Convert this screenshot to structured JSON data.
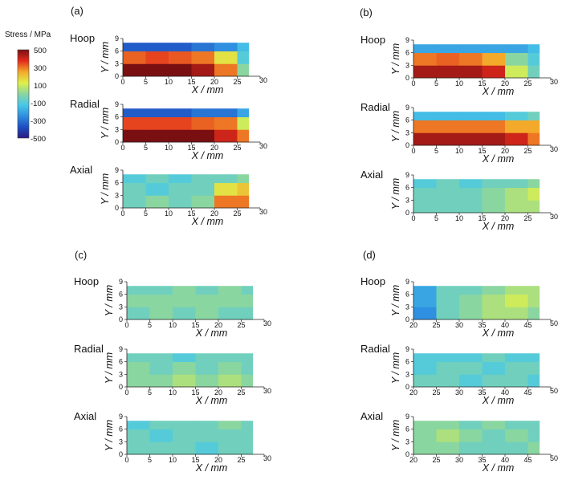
{
  "colorbar": {
    "title": "Stress / MPa",
    "tick_labels": [
      "500",
      "300",
      "100",
      "-100",
      "-300",
      "-500"
    ],
    "range": [
      -500,
      500
    ],
    "colormap": "jet"
  },
  "chart_data": [
    {
      "type": "heatmap",
      "panel": "(a)",
      "row": "Hoop",
      "xlabel": "X / mm",
      "ylabel": "Y / mm",
      "xlim": [
        0,
        30
      ],
      "ylim": [
        0,
        9
      ],
      "xticks": [
        "0",
        "5",
        "10",
        "15",
        "20",
        "25",
        "30"
      ],
      "yticks": [
        "0",
        "3",
        "6",
        "9"
      ],
      "x": [
        0,
        5,
        10,
        15,
        20,
        25
      ],
      "y": [
        0,
        3,
        6
      ],
      "z": [
        [
          500,
          500,
          500,
          450,
          300,
          0
        ],
        [
          320,
          350,
          330,
          300,
          150,
          -100
        ],
        [
          -350,
          -350,
          -350,
          -300,
          -250,
          -150
        ]
      ]
    },
    {
      "type": "heatmap",
      "panel": "(a)",
      "row": "Radial",
      "xlabel": "X / mm",
      "ylabel": "Y / mm",
      "xlim": [
        0,
        30
      ],
      "ylim": [
        0,
        9
      ],
      "xticks": [
        "0",
        "5",
        "10",
        "15",
        "20",
        "25",
        "30"
      ],
      "yticks": [
        "0",
        "3",
        "6",
        "9"
      ],
      "x": [
        0,
        5,
        10,
        15,
        20,
        25
      ],
      "y": [
        0,
        3,
        6
      ],
      "z": [
        [
          500,
          500,
          500,
          500,
          400,
          300
        ],
        [
          350,
          350,
          350,
          320,
          300,
          100
        ],
        [
          -350,
          -350,
          -350,
          -300,
          -300,
          -200
        ]
      ]
    },
    {
      "type": "heatmap",
      "panel": "(a)",
      "row": "Axial",
      "xlabel": "X / mm",
      "ylabel": "Y / mm",
      "xlim": [
        0,
        30
      ],
      "ylim": [
        0,
        9
      ],
      "xticks": [
        "0",
        "5",
        "10",
        "15",
        "20",
        "25",
        "30"
      ],
      "yticks": [
        "0",
        "3",
        "6",
        "9"
      ],
      "x": [
        0,
        5,
        10,
        15,
        20,
        25
      ],
      "y": [
        0,
        3,
        6
      ],
      "z": [
        [
          -50,
          0,
          -50,
          0,
          300,
          300
        ],
        [
          -50,
          -100,
          -50,
          -50,
          150,
          200
        ],
        [
          -100,
          -50,
          -100,
          -50,
          -50,
          0
        ]
      ]
    },
    {
      "type": "heatmap",
      "panel": "(b)",
      "row": "Hoop",
      "xlabel": "X / mm",
      "ylabel": "Y / mm",
      "xlim": [
        0,
        30
      ],
      "ylim": [
        0,
        9
      ],
      "xticks": [
        "0",
        "5",
        "10",
        "15",
        "20",
        "25",
        "30"
      ],
      "yticks": [
        "0",
        "3",
        "6",
        "9"
      ],
      "x": [
        0,
        5,
        10,
        15,
        20,
        25
      ],
      "y": [
        0,
        3,
        6
      ],
      "z": [
        [
          450,
          450,
          450,
          400,
          100,
          -50
        ],
        [
          300,
          320,
          300,
          250,
          0,
          -100
        ],
        [
          -200,
          -200,
          -200,
          -200,
          -200,
          -150
        ]
      ]
    },
    {
      "type": "heatmap",
      "panel": "(b)",
      "row": "Radial",
      "xlabel": "X / mm",
      "ylabel": "Y / mm",
      "xlim": [
        0,
        30
      ],
      "ylim": [
        0,
        9
      ],
      "xticks": [
        "0",
        "5",
        "10",
        "15",
        "20",
        "25",
        "30"
      ],
      "yticks": [
        "0",
        "3",
        "6",
        "9"
      ],
      "x": [
        0,
        5,
        10,
        15,
        20,
        25
      ],
      "y": [
        0,
        3,
        6
      ],
      "z": [
        [
          450,
          450,
          450,
          450,
          400,
          300
        ],
        [
          300,
          300,
          300,
          300,
          250,
          250
        ],
        [
          -150,
          -150,
          -150,
          -150,
          -100,
          -50
        ]
      ]
    },
    {
      "type": "heatmap",
      "panel": "(b)",
      "row": "Axial",
      "xlabel": "X / mm",
      "ylabel": "Y / mm",
      "xlim": [
        0,
        30
      ],
      "ylim": [
        0,
        9
      ],
      "xticks": [
        "0",
        "5",
        "10",
        "15",
        "20",
        "25",
        "30"
      ],
      "yticks": [
        "0",
        "3",
        "6",
        "9"
      ],
      "x": [
        0,
        5,
        10,
        15,
        20,
        25
      ],
      "y": [
        0,
        3,
        6
      ],
      "z": [
        [
          -50,
          -50,
          -50,
          0,
          50,
          50
        ],
        [
          -50,
          -50,
          -50,
          0,
          50,
          100
        ],
        [
          -100,
          -50,
          -100,
          -50,
          -50,
          0
        ]
      ]
    },
    {
      "type": "heatmap",
      "panel": "(c)",
      "row": "Hoop",
      "xlabel": "X / mm",
      "ylabel": "Y / mm",
      "xlim": [
        0,
        30
      ],
      "ylim": [
        0,
        9
      ],
      "xticks": [
        "0",
        "5",
        "10",
        "15",
        "20",
        "25",
        "30"
      ],
      "yticks": [
        "0",
        "3",
        "6",
        "9"
      ],
      "x": [
        0,
        5,
        10,
        15,
        20,
        25
      ],
      "y": [
        0,
        3,
        6
      ],
      "z": [
        [
          -50,
          0,
          -50,
          0,
          -50,
          -50
        ],
        [
          0,
          0,
          0,
          0,
          0,
          0
        ],
        [
          -50,
          -50,
          0,
          -50,
          0,
          -50
        ]
      ]
    },
    {
      "type": "heatmap",
      "panel": "(c)",
      "row": "Radial",
      "xlabel": "X / mm",
      "ylabel": "Y / mm",
      "xlim": [
        0,
        30
      ],
      "ylim": [
        0,
        9
      ],
      "xticks": [
        "0",
        "5",
        "10",
        "15",
        "20",
        "25",
        "30"
      ],
      "yticks": [
        "0",
        "3",
        "6",
        "9"
      ],
      "x": [
        0,
        5,
        10,
        15,
        20,
        25
      ],
      "y": [
        0,
        3,
        6
      ],
      "z": [
        [
          0,
          0,
          50,
          0,
          50,
          0
        ],
        [
          0,
          -50,
          0,
          -50,
          0,
          -50
        ],
        [
          -50,
          -50,
          -100,
          -50,
          -50,
          -50
        ]
      ]
    },
    {
      "type": "heatmap",
      "panel": "(c)",
      "row": "Axial",
      "xlabel": "X / mm",
      "ylabel": "Y / mm",
      "xlim": [
        0,
        30
      ],
      "ylim": [
        0,
        9
      ],
      "xticks": [
        "0",
        "5",
        "10",
        "15",
        "20",
        "25",
        "30"
      ],
      "yticks": [
        "0",
        "3",
        "6",
        "9"
      ],
      "x": [
        0,
        5,
        10,
        15,
        20,
        25
      ],
      "y": [
        0,
        3,
        6
      ],
      "z": [
        [
          -50,
          -50,
          -50,
          -100,
          -50,
          -50
        ],
        [
          -50,
          -100,
          -50,
          -50,
          -50,
          -50
        ],
        [
          -100,
          -50,
          -50,
          -50,
          0,
          -50
        ]
      ]
    },
    {
      "type": "heatmap",
      "panel": "(d)",
      "row": "Hoop",
      "xlabel": "X / mm",
      "ylabel": "Y / mm",
      "xlim": [
        20,
        50
      ],
      "ylim": [
        0,
        9
      ],
      "xticks": [
        "20",
        "25",
        "30",
        "35",
        "40",
        "45",
        "50"
      ],
      "yticks": [
        "0",
        "3",
        "6",
        "9"
      ],
      "x": [
        20,
        25,
        30,
        35,
        40,
        45
      ],
      "y": [
        0,
        3,
        6
      ],
      "z": [
        [
          -250,
          -50,
          0,
          50,
          50,
          0
        ],
        [
          -200,
          -50,
          0,
          50,
          100,
          50
        ],
        [
          -200,
          -50,
          -50,
          0,
          50,
          50
        ]
      ]
    },
    {
      "type": "heatmap",
      "panel": "(d)",
      "row": "Radial",
      "xlabel": "X / mm",
      "ylabel": "Y / mm",
      "xlim": [
        20,
        50
      ],
      "ylim": [
        0,
        9
      ],
      "xticks": [
        "20",
        "25",
        "30",
        "35",
        "40",
        "45",
        "50"
      ],
      "yticks": [
        "0",
        "3",
        "6",
        "9"
      ],
      "x": [
        20,
        25,
        30,
        35,
        40,
        45
      ],
      "y": [
        0,
        3,
        6
      ],
      "z": [
        [
          -50,
          -50,
          -100,
          -50,
          -50,
          -100
        ],
        [
          -100,
          -50,
          -50,
          -100,
          -50,
          -50
        ],
        [
          -100,
          -100,
          -100,
          -50,
          -100,
          -100
        ]
      ]
    },
    {
      "type": "heatmap",
      "panel": "(d)",
      "row": "Axial",
      "xlabel": "X / mm",
      "ylabel": "Y / mm",
      "xlim": [
        20,
        50
      ],
      "ylim": [
        0,
        9
      ],
      "xticks": [
        "20",
        "25",
        "30",
        "35",
        "40",
        "45",
        "50"
      ],
      "yticks": [
        "0",
        "3",
        "6",
        "9"
      ],
      "x": [
        20,
        25,
        30,
        35,
        40,
        45
      ],
      "y": [
        0,
        3,
        6
      ],
      "z": [
        [
          0,
          0,
          -50,
          -50,
          -50,
          0
        ],
        [
          0,
          50,
          0,
          -50,
          0,
          -50
        ],
        [
          0,
          0,
          -50,
          0,
          -50,
          -50
        ]
      ]
    }
  ]
}
